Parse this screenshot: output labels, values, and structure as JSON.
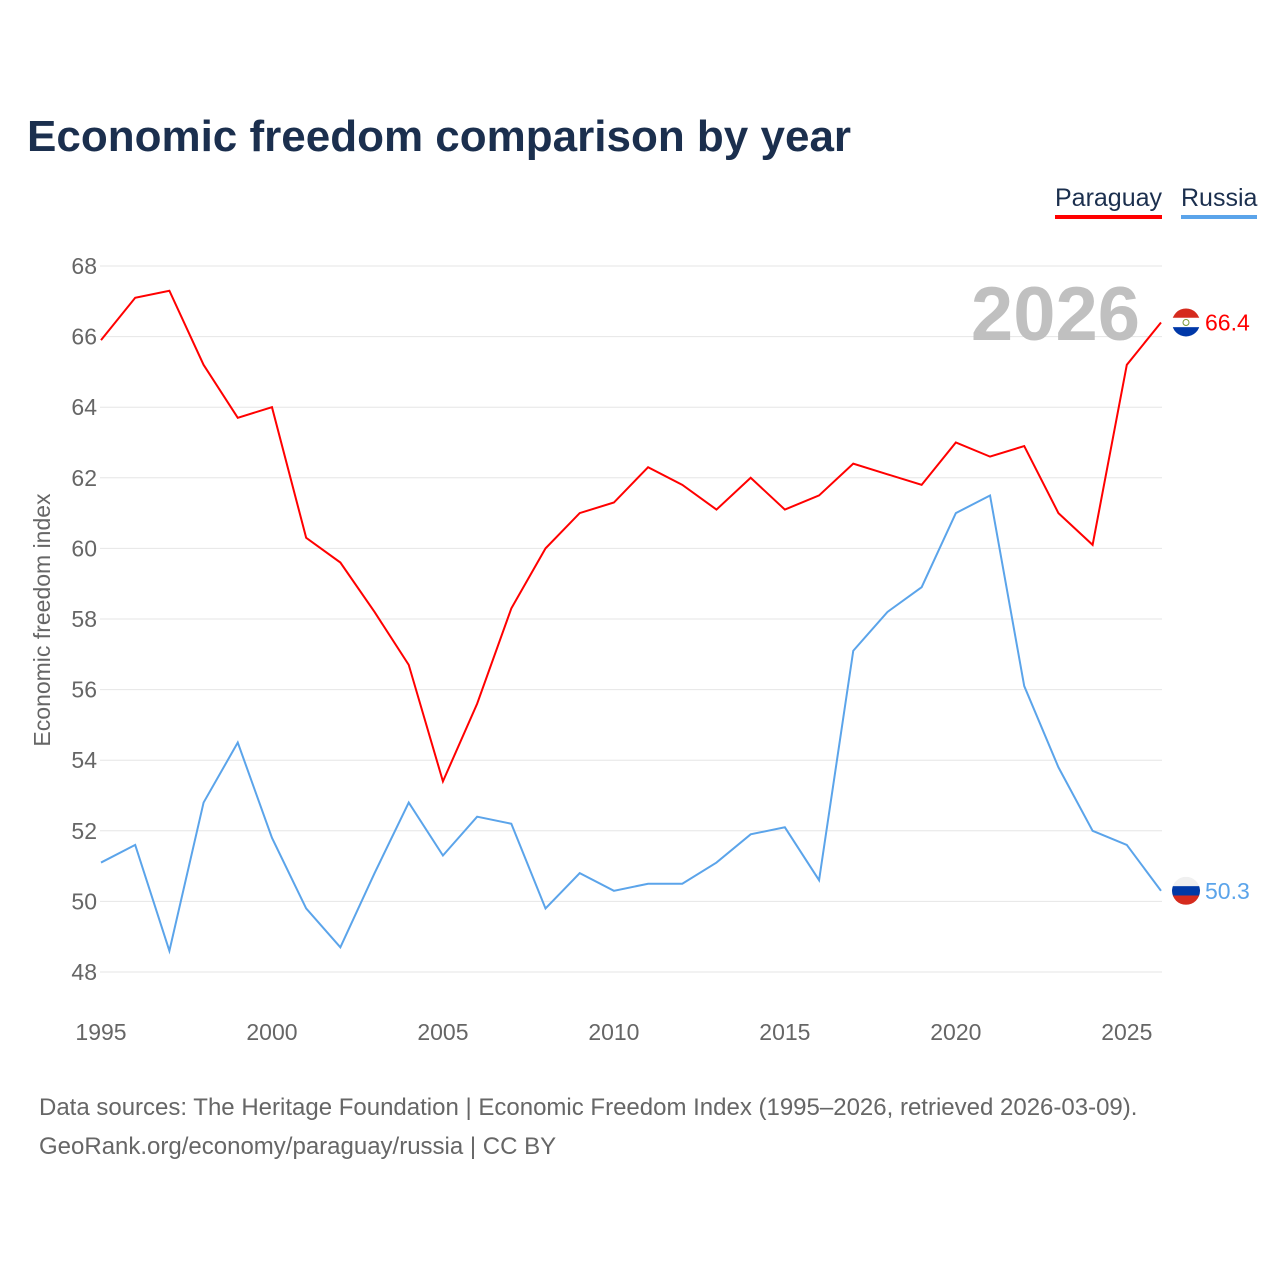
{
  "chart_data": {
    "type": "line",
    "title": "Economic freedom comparison by year",
    "ylabel": "Economic freedom index",
    "xlabel": "",
    "ylim": [
      48,
      68
    ],
    "xlim": [
      1995,
      2026
    ],
    "yticks": [
      48,
      50,
      52,
      54,
      56,
      58,
      60,
      62,
      64,
      66,
      68
    ],
    "xticks": [
      1995,
      2000,
      2005,
      2010,
      2015,
      2020,
      2025
    ],
    "grid": true,
    "legend_position": "top-right",
    "year_label": "2026",
    "x": [
      1995,
      1996,
      1997,
      1998,
      1999,
      2000,
      2001,
      2002,
      2003,
      2004,
      2005,
      2006,
      2007,
      2008,
      2009,
      2010,
      2011,
      2012,
      2013,
      2014,
      2015,
      2016,
      2017,
      2018,
      2019,
      2020,
      2021,
      2022,
      2023,
      2024,
      2025,
      2026
    ],
    "series": [
      {
        "name": "Paraguay",
        "color": "#ff0000",
        "end_label": "66.4",
        "values": [
          65.9,
          67.1,
          67.3,
          65.2,
          63.7,
          64.0,
          60.3,
          59.6,
          58.2,
          56.7,
          53.4,
          55.6,
          58.3,
          60.0,
          61.0,
          61.3,
          62.3,
          61.8,
          61.1,
          62.0,
          61.1,
          61.5,
          62.4,
          62.1,
          61.8,
          63.0,
          62.6,
          62.9,
          61.0,
          60.1,
          65.2,
          66.4
        ]
      },
      {
        "name": "Russia",
        "color": "#5ba4ea",
        "end_label": "50.3",
        "values": [
          51.1,
          51.6,
          48.6,
          52.8,
          54.5,
          51.8,
          49.8,
          48.7,
          50.8,
          52.8,
          51.3,
          52.4,
          52.2,
          49.8,
          50.8,
          50.3,
          50.5,
          50.5,
          51.1,
          51.9,
          52.1,
          50.6,
          57.1,
          58.2,
          58.9,
          61.0,
          61.5,
          56.1,
          53.8,
          52.0,
          51.6,
          50.3
        ]
      }
    ]
  },
  "footer": {
    "line1": "Data sources: The Heritage Foundation | Economic Freedom Index (1995–2026, retrieved 2026-03-09).",
    "line2": "GeoRank.org/economy/paraguay/russia | CC BY"
  }
}
